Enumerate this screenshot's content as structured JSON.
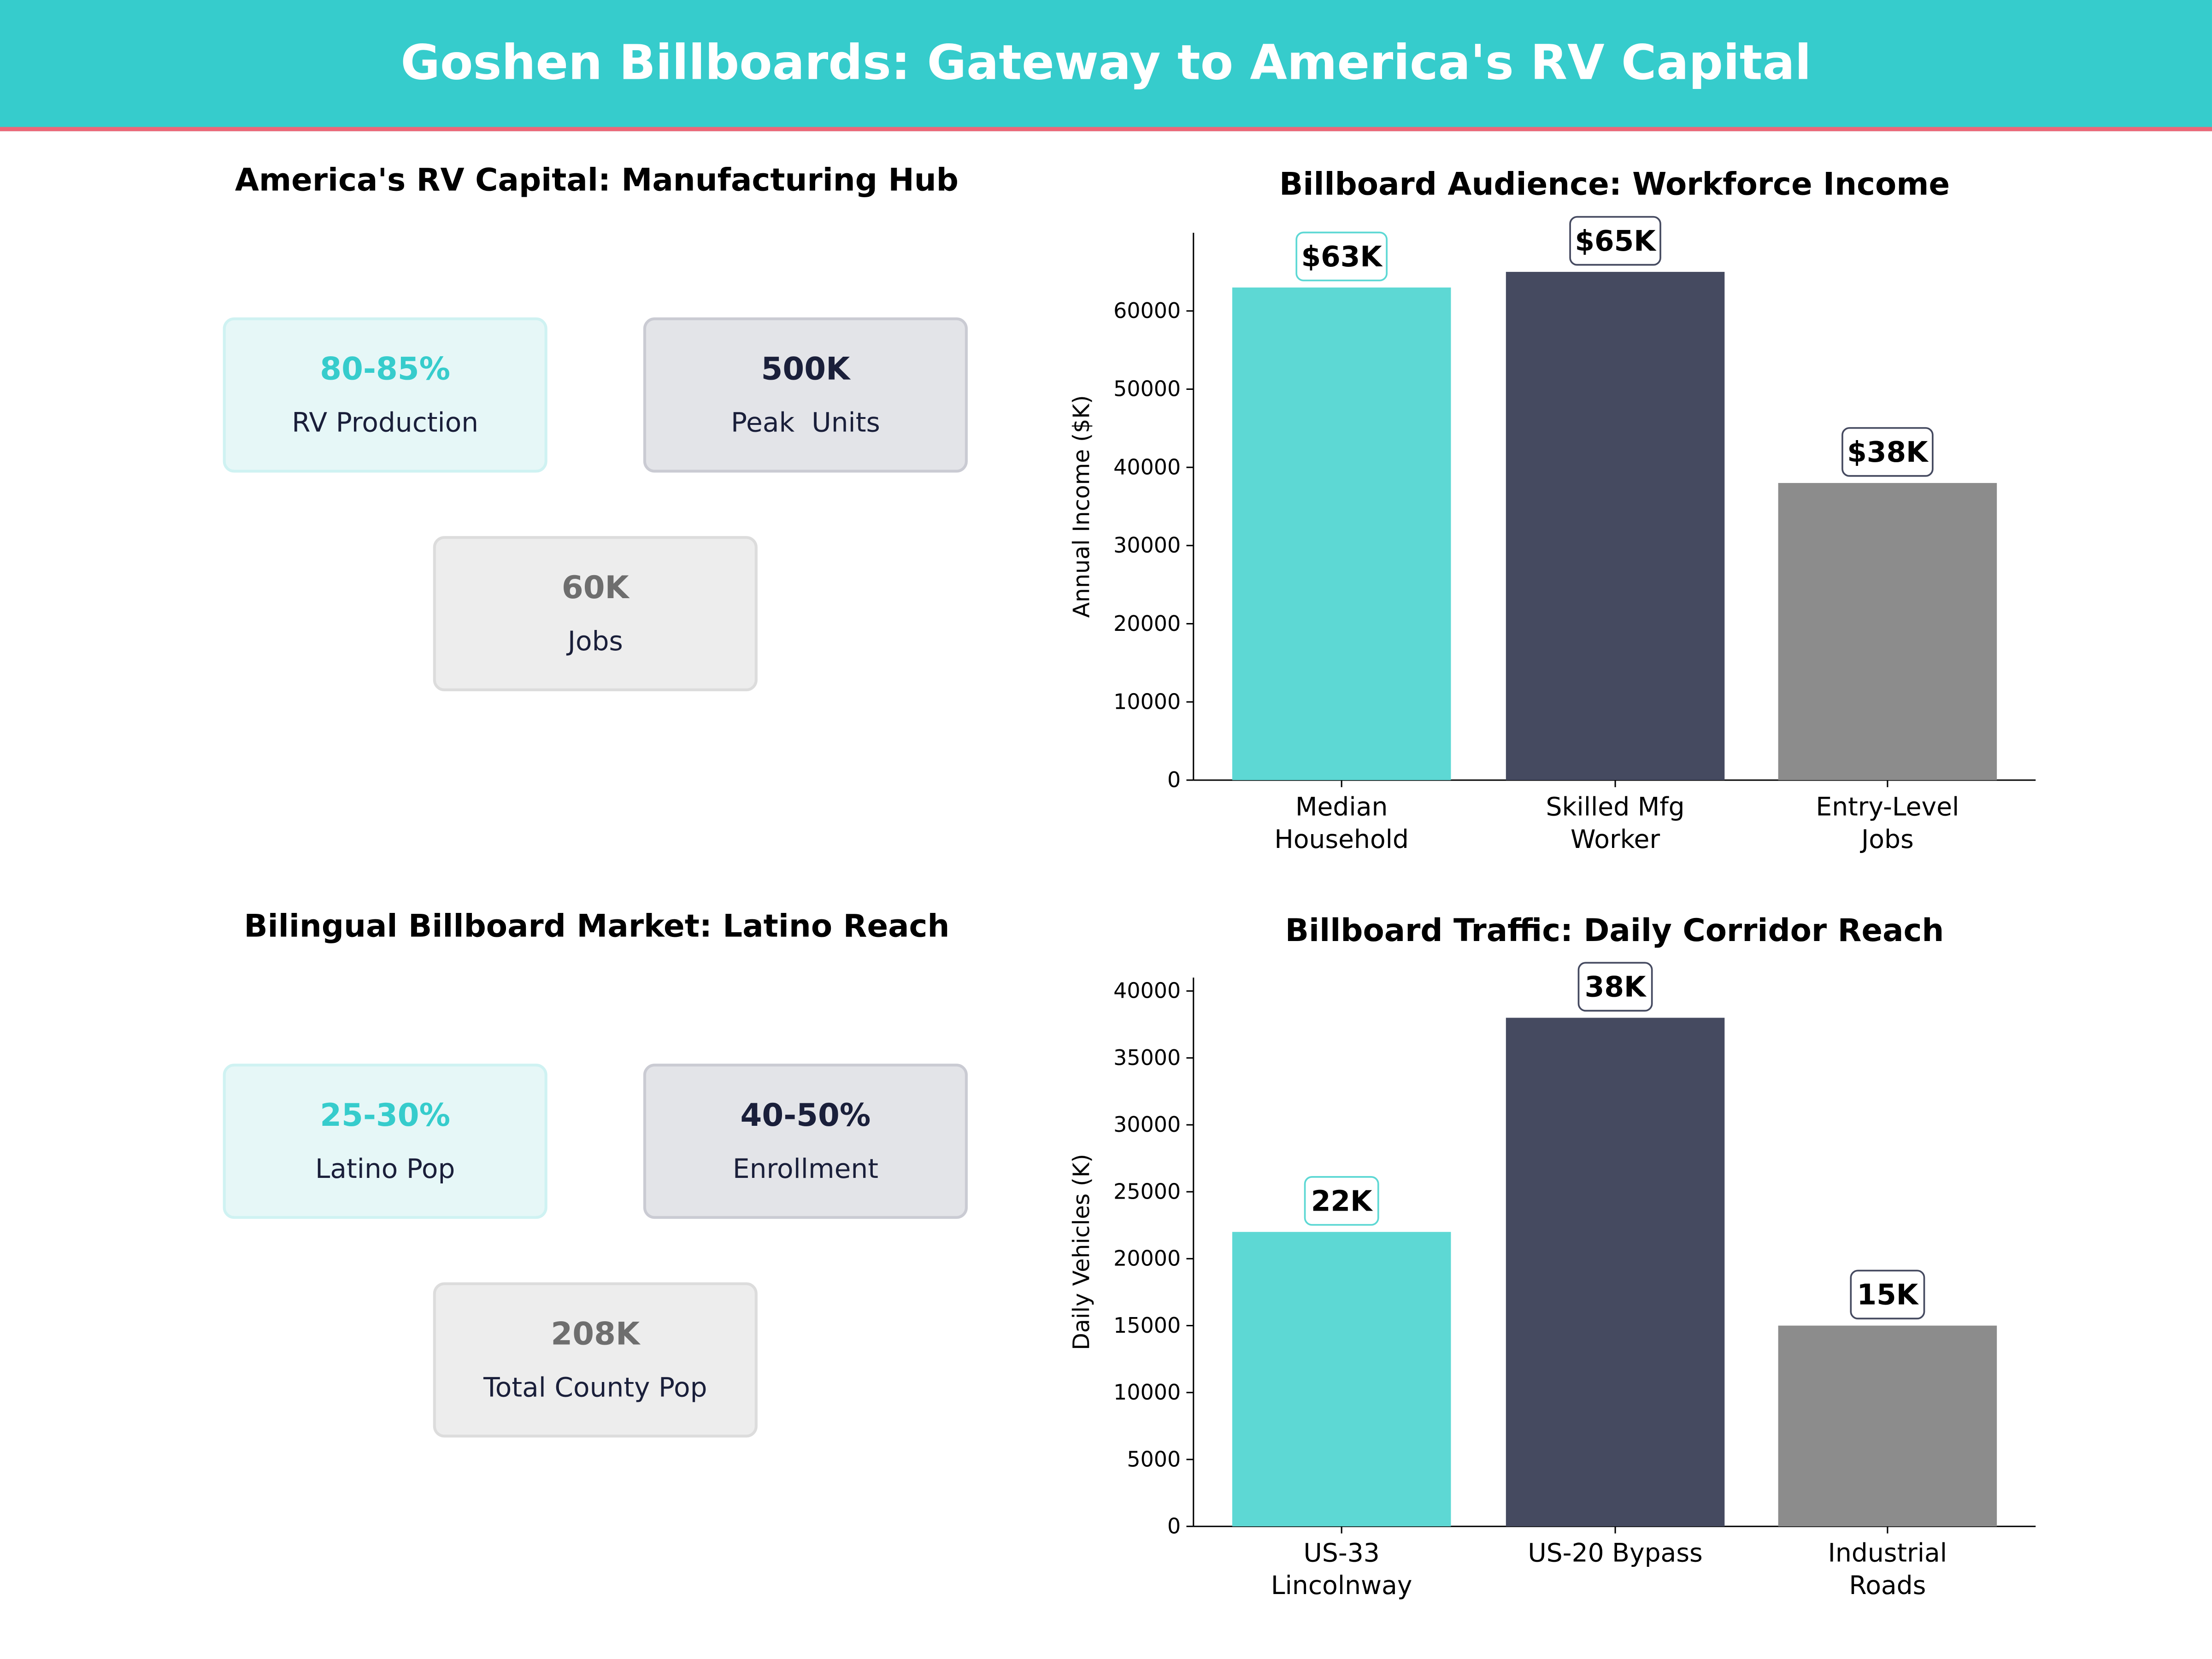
{
  "title": "Goshen Billboards: Gateway to America's RV Capital",
  "colors": {
    "header": "#36CCCC",
    "accent_line": "#EE6677",
    "teal": "#5DD8D4",
    "dark": "#454A60",
    "gray": "#8C8C8C"
  },
  "panels": {
    "manufacturing": {
      "title": "America's RV Capital: Manufacturing Hub",
      "cards": [
        {
          "value": "80-85%",
          "label": "RV Production"
        },
        {
          "value": "500K",
          "label": "Peak  Units"
        },
        {
          "value": "60K",
          "label": "Jobs"
        }
      ]
    },
    "latino": {
      "title": "Bilingual Billboard Market: Latino Reach",
      "cards": [
        {
          "value": "25-30%",
          "label": "Latino Pop"
        },
        {
          "value": "40-50%",
          "label": "Enrollment"
        },
        {
          "value": "208K",
          "label": "Total County Pop"
        }
      ]
    }
  },
  "chart_data": [
    {
      "type": "bar",
      "title": "Billboard Audience: Workforce Income",
      "ylabel": "Annual Income ($K)",
      "categories": [
        [
          "Median",
          "Household"
        ],
        [
          "Skilled Mfg",
          "Worker"
        ],
        [
          "Entry-Level",
          "Jobs"
        ]
      ],
      "values": [
        63000,
        65000,
        38000
      ],
      "data_labels": [
        "$63K",
        "$65K",
        "$38K"
      ],
      "yticks": [
        0,
        10000,
        20000,
        30000,
        40000,
        50000,
        60000
      ],
      "ylim": [
        0,
        70000
      ],
      "grid": false
    },
    {
      "type": "bar",
      "title": "Billboard Traffic: Daily Corridor Reach",
      "ylabel": "Daily Vehicles (K)",
      "categories": [
        [
          "US-33",
          "Lincolnway"
        ],
        [
          "US-20 Bypass"
        ],
        [
          "Industrial",
          "Roads"
        ]
      ],
      "values": [
        22000,
        38000,
        15000
      ],
      "data_labels": [
        "22K",
        "38K",
        "15K"
      ],
      "yticks": [
        0,
        5000,
        10000,
        15000,
        20000,
        25000,
        30000,
        35000,
        40000
      ],
      "ylim": [
        0,
        41000
      ],
      "grid": false
    }
  ]
}
